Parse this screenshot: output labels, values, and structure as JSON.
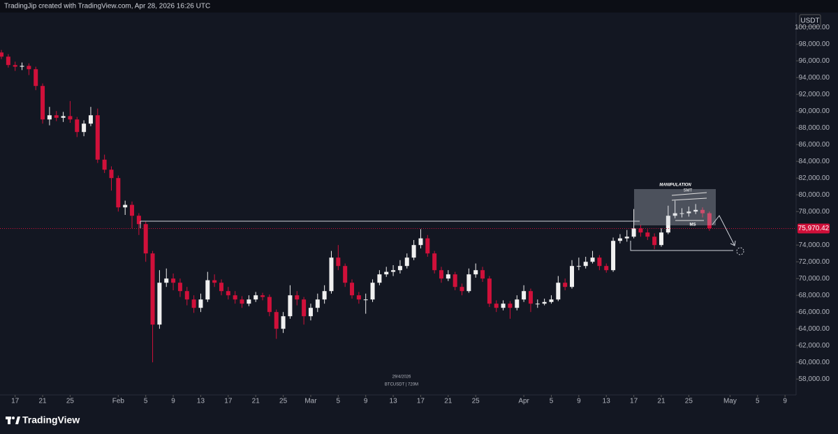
{
  "header": {
    "attribution": "TradingJip created with TradingView.com, Apr 28, 2026 16:26 UTC",
    "currency": "USDT",
    "brand": "TradingView"
  },
  "chart_data": {
    "type": "candlestick",
    "symbol_label": "BTCUSDT | 720M",
    "date_label": "29/4/2026",
    "annotations": [
      "MANIPULATION",
      "SMT",
      "MS"
    ],
    "up_color": "#f0f0f0",
    "down_color": "#d0103a",
    "x": [
      "2026-01-15",
      "2026-01-16",
      "2026-01-17",
      "2026-01-18",
      "2026-01-19",
      "2026-01-20",
      "2026-01-21",
      "2026-01-22",
      "2026-01-23",
      "2026-01-24",
      "2026-01-25",
      "2026-01-26",
      "2026-01-27",
      "2026-01-28",
      "2026-01-29",
      "2026-01-30",
      "2026-01-31",
      "2026-02-01",
      "2026-02-02",
      "2026-02-03",
      "2026-02-04",
      "2026-02-05",
      "2026-02-06",
      "2026-02-07",
      "2026-02-08",
      "2026-02-09",
      "2026-02-10",
      "2026-02-11",
      "2026-02-12",
      "2026-02-13",
      "2026-02-14",
      "2026-02-15",
      "2026-02-16",
      "2026-02-17",
      "2026-02-18",
      "2026-02-19",
      "2026-02-20",
      "2026-02-21",
      "2026-02-22",
      "2026-02-23",
      "2026-02-24",
      "2026-02-25",
      "2026-02-26",
      "2026-02-27",
      "2026-02-28",
      "2026-03-01",
      "2026-03-02",
      "2026-03-03",
      "2026-03-04",
      "2026-03-05",
      "2026-03-06",
      "2026-03-07",
      "2026-03-08",
      "2026-03-09",
      "2026-03-10",
      "2026-03-11",
      "2026-03-12",
      "2026-03-13",
      "2026-03-14",
      "2026-03-15",
      "2026-03-16",
      "2026-03-17",
      "2026-03-18",
      "2026-03-19",
      "2026-03-20",
      "2026-03-21",
      "2026-03-22",
      "2026-03-23",
      "2026-03-24",
      "2026-03-25",
      "2026-03-26",
      "2026-03-27",
      "2026-03-28",
      "2026-03-29",
      "2026-03-30",
      "2026-03-31",
      "2026-04-01",
      "2026-04-02",
      "2026-04-03",
      "2026-04-04",
      "2026-04-05",
      "2026-04-06",
      "2026-04-07",
      "2026-04-08",
      "2026-04-09",
      "2026-04-10",
      "2026-04-11",
      "2026-04-12",
      "2026-04-13",
      "2026-04-14",
      "2026-04-15",
      "2026-04-16",
      "2026-04-17",
      "2026-04-18",
      "2026-04-19",
      "2026-04-20",
      "2026-04-21",
      "2026-04-22",
      "2026-04-23",
      "2026-04-24",
      "2026-04-25",
      "2026-04-26",
      "2026-04-27",
      "2026-04-28"
    ],
    "open": [
      97000,
      96500,
      95500,
      95300,
      95400,
      95000,
      93000,
      89000,
      89500,
      89200,
      89400,
      89000,
      87500,
      88500,
      89500,
      84200,
      83000,
      82000,
      78500,
      78800,
      77500,
      76500,
      73000,
      64500,
      69500,
      70000,
      69500,
      68500,
      67500,
      66500,
      67500,
      69800,
      69500,
      68500,
      68000,
      67500,
      67000,
      67500,
      68000,
      67800,
      66000,
      64000,
      65500,
      68000,
      67500,
      65500,
      66500,
      67500,
      68500,
      72500,
      71500,
      69500,
      68000,
      67500,
      67500,
      69500,
      70500,
      70800,
      71000,
      71500,
      72500,
      74000,
      74800,
      73000,
      71000,
      70000,
      70500,
      69000,
      68500,
      70500,
      71000,
      70000,
      67000,
      66500,
      67000,
      66500,
      67500,
      68500,
      67000,
      67000,
      67200,
      67500,
      69500,
      69000,
      71500,
      71500,
      72000,
      72500,
      71500,
      71000,
      74500,
      74800,
      75000,
      76000,
      75500,
      75000,
      74000,
      75500,
      77500,
      77800,
      77800,
      78000,
      78200,
      77800
    ],
    "high": [
      97300,
      96800,
      95900,
      95800,
      95700,
      95300,
      93300,
      90500,
      90000,
      89900,
      91200,
      89300,
      88900,
      90500,
      90300,
      84800,
      83400,
      82300,
      79300,
      79200,
      77800,
      76800,
      73300,
      71000,
      71200,
      70600,
      70000,
      69000,
      68000,
      68200,
      70800,
      70500,
      69900,
      69000,
      68500,
      67900,
      68000,
      68400,
      68300,
      68100,
      66300,
      66000,
      69200,
      68500,
      67800,
      67000,
      68200,
      69200,
      73300,
      74000,
      71800,
      69900,
      68400,
      68200,
      69900,
      71000,
      71400,
      71600,
      72200,
      73000,
      74600,
      75900,
      75200,
      73300,
      71400,
      71000,
      70800,
      69400,
      71200,
      71800,
      71400,
      70300,
      67400,
      67400,
      67300,
      68000,
      69200,
      68800,
      67500,
      67600,
      68000,
      70300,
      70000,
      72200,
      72500,
      72600,
      73300,
      72800,
      71800,
      74900,
      75300,
      75800,
      78300,
      76400,
      75900,
      75400,
      76000,
      78700,
      79300,
      78400,
      78600,
      78900,
      78500,
      78000
    ],
    "low": [
      96200,
      95200,
      94800,
      94900,
      94300,
      92500,
      88500,
      88300,
      88800,
      88700,
      88600,
      86900,
      87000,
      88200,
      83800,
      82600,
      80500,
      78000,
      77600,
      76000,
      75200,
      72000,
      60000,
      64000,
      69000,
      68600,
      67800,
      66800,
      65900,
      66000,
      67200,
      69000,
      68000,
      67500,
      67000,
      66500,
      66700,
      67200,
      67400,
      65500,
      62800,
      63500,
      65200,
      66800,
      64500,
      65000,
      66000,
      67000,
      68200,
      71000,
      69000,
      67600,
      67000,
      65800,
      67200,
      69200,
      70200,
      70300,
      70600,
      71200,
      72200,
      73600,
      72600,
      70600,
      69500,
      69700,
      68600,
      68000,
      68300,
      70100,
      69600,
      66600,
      66000,
      66200,
      65200,
      66200,
      67200,
      66000,
      66500,
      66800,
      67000,
      67300,
      68600,
      68800,
      71000,
      71200,
      71800,
      71000,
      70700,
      70800,
      74200,
      74400,
      74800,
      75000,
      74600,
      73500,
      73800,
      75300,
      77200,
      77300,
      77400,
      77700,
      77300,
      75700
    ],
    "close": [
      96500,
      95500,
      95300,
      95400,
      95000,
      93000,
      89000,
      89500,
      89200,
      89400,
      89000,
      87500,
      88500,
      89500,
      84200,
      83000,
      82000,
      78500,
      78800,
      77500,
      76500,
      73000,
      64500,
      69500,
      70000,
      69500,
      68500,
      67500,
      66500,
      67500,
      69800,
      69500,
      68500,
      68000,
      67500,
      67000,
      67500,
      68000,
      67800,
      66000,
      64000,
      65500,
      68000,
      67500,
      65500,
      66500,
      67500,
      68500,
      72500,
      71500,
      69500,
      68000,
      67500,
      67500,
      69500,
      70500,
      70800,
      71000,
      71500,
      72500,
      74000,
      74800,
      73000,
      71000,
      70000,
      70500,
      69000,
      68500,
      70500,
      71000,
      70000,
      67000,
      66500,
      67000,
      66500,
      67500,
      68500,
      67000,
      67000,
      67200,
      67500,
      69500,
      69000,
      71500,
      71500,
      72000,
      72500,
      71500,
      71000,
      74500,
      74800,
      75000,
      76000,
      75500,
      75000,
      74000,
      75500,
      77500,
      77800,
      77800,
      78000,
      78200,
      77800,
      76000
    ],
    "xlim": [
      "2026-01-15",
      "2026-05-10"
    ],
    "xticks": [
      {
        "value": "2026-01-17",
        "label": "17"
      },
      {
        "value": "2026-01-21",
        "label": "21"
      },
      {
        "value": "2026-01-25",
        "label": "25"
      },
      {
        "value": "2026-02-01",
        "label": "Feb"
      },
      {
        "value": "2026-02-05",
        "label": "5"
      },
      {
        "value": "2026-02-09",
        "label": "9"
      },
      {
        "value": "2026-02-13",
        "label": "13"
      },
      {
        "value": "2026-02-17",
        "label": "17"
      },
      {
        "value": "2026-02-21",
        "label": "21"
      },
      {
        "value": "2026-02-25",
        "label": "25"
      },
      {
        "value": "2026-03-01",
        "label": "Mar"
      },
      {
        "value": "2026-03-05",
        "label": "5"
      },
      {
        "value": "2026-03-09",
        "label": "9"
      },
      {
        "value": "2026-03-13",
        "label": "13"
      },
      {
        "value": "2026-03-17",
        "label": "17"
      },
      {
        "value": "2026-03-21",
        "label": "21"
      },
      {
        "value": "2026-03-25",
        "label": "25"
      },
      {
        "value": "2026-04-01",
        "label": "Apr"
      },
      {
        "value": "2026-04-05",
        "label": "5"
      },
      {
        "value": "2026-04-09",
        "label": "9"
      },
      {
        "value": "2026-04-13",
        "label": "13"
      },
      {
        "value": "2026-04-17",
        "label": "17"
      },
      {
        "value": "2026-04-21",
        "label": "21"
      },
      {
        "value": "2026-04-25",
        "label": "25"
      },
      {
        "value": "2026-05-01",
        "label": "May"
      },
      {
        "value": "2026-05-05",
        "label": "5"
      },
      {
        "value": "2026-05-09",
        "label": "9"
      }
    ],
    "ylim": [
      56100,
      101600
    ],
    "yticks": [
      {
        "value": 58000,
        "label": "58,000.00"
      },
      {
        "value": 60000,
        "label": "60,000.00"
      },
      {
        "value": 62000,
        "label": "62,000.00"
      },
      {
        "value": 64000,
        "label": "64,000.00"
      },
      {
        "value": 66000,
        "label": "66,000.00"
      },
      {
        "value": 68000,
        "label": "68,000.00"
      },
      {
        "value": 70000,
        "label": "70,000.00"
      },
      {
        "value": 72000,
        "label": "72,000.00"
      },
      {
        "value": 74000,
        "label": "74,000.00"
      },
      {
        "value": 78000,
        "label": "78,000.00"
      },
      {
        "value": 80000,
        "label": "80,000.00"
      },
      {
        "value": 82000,
        "label": "82,000.00"
      },
      {
        "value": 84000,
        "label": "84,000.00"
      },
      {
        "value": 86000,
        "label": "86,000.00"
      },
      {
        "value": 88000,
        "label": "88,000.00"
      },
      {
        "value": 90000,
        "label": "90,000.00"
      },
      {
        "value": 92000,
        "label": "92,000.00"
      },
      {
        "value": 94000,
        "label": "94,000.00"
      },
      {
        "value": 96000,
        "label": "96,000.00"
      },
      {
        "value": 98000,
        "label": "98,000.00"
      },
      {
        "value": 100000,
        "label": "100,000.00"
      }
    ],
    "last_price": {
      "value": 75970.42,
      "label": "75,970.42"
    },
    "last_price_color": "#d0103a"
  }
}
